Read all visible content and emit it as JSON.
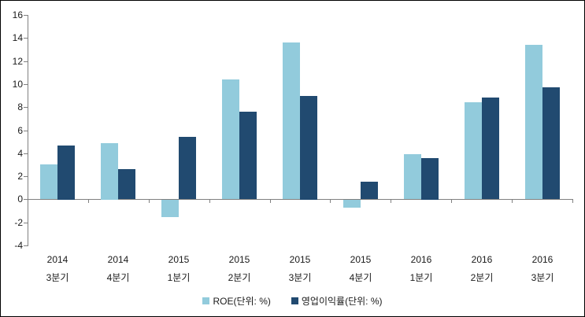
{
  "chart_data": {
    "type": "bar",
    "title": "",
    "xlabel": "",
    "ylabel": "",
    "categories": [
      {
        "line1": "2014",
        "line2": "3분기"
      },
      {
        "line1": "2014",
        "line2": "4분기"
      },
      {
        "line1": "2015",
        "line2": "1분기"
      },
      {
        "line1": "2015",
        "line2": "2분기"
      },
      {
        "line1": "2015",
        "line2": "3분기"
      },
      {
        "line1": "2015",
        "line2": "4분기"
      },
      {
        "line1": "2016",
        "line2": "1분기"
      },
      {
        "line1": "2016",
        "line2": "2분기"
      },
      {
        "line1": "2016",
        "line2": "3분기"
      }
    ],
    "series": [
      {
        "name": "ROE(단위: %)",
        "color": "#92CBDC",
        "values": [
          3.0,
          4.9,
          -1.5,
          10.4,
          13.6,
          -0.7,
          3.9,
          8.4,
          13.4
        ]
      },
      {
        "name": "영업이익률(단위: %)",
        "color": "#214A70",
        "values": [
          4.7,
          2.6,
          5.4,
          7.6,
          9.0,
          1.5,
          3.6,
          8.8,
          9.7
        ]
      }
    ],
    "ylim": [
      -4,
      16
    ],
    "ytick_step": 2,
    "grid": false,
    "legend_position": "bottom-center",
    "axis_color": "#808080",
    "background_color": "#FFFFFF",
    "border_color": "#000000"
  }
}
